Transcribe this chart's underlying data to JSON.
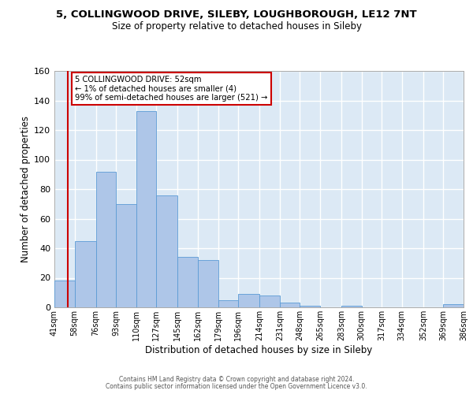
{
  "title1": "5, COLLINGWOOD DRIVE, SILEBY, LOUGHBOROUGH, LE12 7NT",
  "title2": "Size of property relative to detached houses in Sileby",
  "xlabel": "Distribution of detached houses by size in Sileby",
  "ylabel": "Number of detached properties",
  "bin_edges": [
    41,
    58,
    76,
    93,
    110,
    127,
    145,
    162,
    179,
    196,
    214,
    231,
    248,
    265,
    283,
    300,
    317,
    334,
    352,
    369,
    386
  ],
  "bar_heights": [
    18,
    45,
    92,
    70,
    133,
    76,
    34,
    32,
    5,
    9,
    8,
    3,
    1,
    0,
    1,
    0,
    0,
    0,
    0,
    2
  ],
  "bar_color": "#aec6e8",
  "bar_edge_color": "#5b9bd5",
  "bg_color": "#dce9f5",
  "grid_color": "#ffffff",
  "property_size": 52,
  "red_line_color": "#cc0000",
  "annotation_line1": "5 COLLINGWOOD DRIVE: 52sqm",
  "annotation_line2": "← 1% of detached houses are smaller (4)",
  "annotation_line3": "99% of semi-detached houses are larger (521) →",
  "annotation_box_color": "#ffffff",
  "annotation_border_color": "#cc0000",
  "ylim": [
    0,
    160
  ],
  "yticks": [
    0,
    20,
    40,
    60,
    80,
    100,
    120,
    140,
    160
  ],
  "footer1": "Contains HM Land Registry data © Crown copyright and database right 2024.",
  "footer2": "Contains public sector information licensed under the Open Government Licence v3.0."
}
